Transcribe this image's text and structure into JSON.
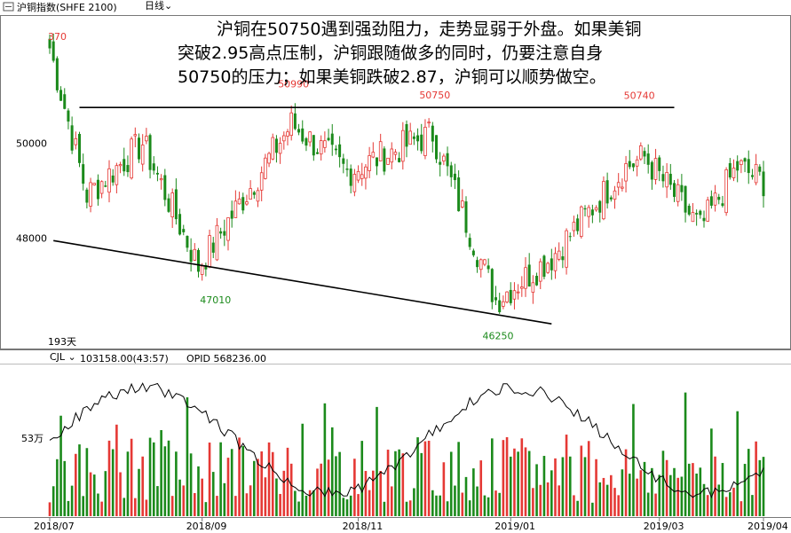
{
  "header": {
    "instrument": "沪铜指数(SHFE 2100)",
    "period": "日线"
  },
  "commentary": {
    "line1": "沪铜在50750遇到强劲阻力，走势显弱于外盘。如果美铜",
    "line2": "突破2.95高点压制，沪铜跟随做多的同时，仍要注意自身",
    "line3": "50750的压力；如果美铜跌破2.87，沪铜可以顺势做空。"
  },
  "indicator": {
    "name": "CJL",
    "volume": "103158.00(43:57)",
    "opid": "OPID 568236.00"
  },
  "colors": {
    "up": "#e53935",
    "down": "#1b8a1b",
    "line": "#000000",
    "label_red": "#e53935",
    "label_green": "#1b8a1b",
    "days_blue": "#1a3fb5"
  },
  "chart_data": [
    {
      "type": "candlestick",
      "price_axis_ticks": [
        "50000",
        "48000"
      ],
      "ylim": [
        45700,
        52600
      ],
      "days_label": "193天",
      "top_partial_label": "370",
      "annotations": [
        {
          "text": "50990",
          "kind": "high",
          "index": 65
        },
        {
          "text": "50750",
          "kind": "high",
          "index": 103
        },
        {
          "text": "50740",
          "kind": "high",
          "index": 158
        },
        {
          "text": "47010",
          "kind": "low",
          "index": 44
        },
        {
          "text": "46250",
          "kind": "low",
          "index": 120
        }
      ],
      "resistance_line": {
        "price": 50750,
        "from_index": 8,
        "to_index": 168
      },
      "support_line": {
        "from_index": 1,
        "from_price": 47950,
        "to_index": 135,
        "to_price": 46200
      },
      "key_points": [
        {
          "index": 0,
          "close": 52000
        },
        {
          "index": 10,
          "close": 48900
        },
        {
          "index": 25,
          "close": 50000
        },
        {
          "index": 40,
          "close": 47400
        },
        {
          "index": 65,
          "close": 50400
        },
        {
          "index": 80,
          "close": 49400
        },
        {
          "index": 103,
          "close": 50200
        },
        {
          "index": 120,
          "close": 46700
        },
        {
          "index": 135,
          "close": 47600
        },
        {
          "index": 155,
          "close": 49500
        },
        {
          "index": 160,
          "close": 49700
        },
        {
          "index": 175,
          "close": 48200
        },
        {
          "index": 185,
          "close": 49500
        },
        {
          "index": 192,
          "close": 49200
        }
      ]
    },
    {
      "type": "bar",
      "ytick": "53万",
      "x_tick_labels": [
        "2018/07",
        "2018/09",
        "2018/11",
        "2019/01",
        "2019/03",
        "2019/04"
      ],
      "x_tick_indices": [
        0,
        41,
        83,
        124,
        164,
        192
      ],
      "volume_range": [
        200000,
        880000
      ],
      "open_interest_range": [
        420000,
        700000
      ]
    }
  ]
}
